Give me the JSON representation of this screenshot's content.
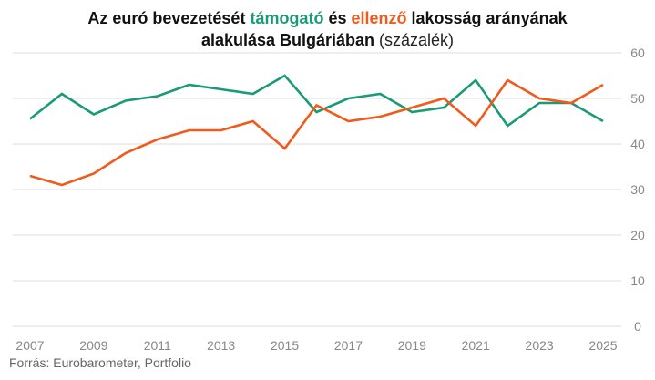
{
  "title": {
    "part1": "Az euró bevezetését ",
    "support_word": "támogató",
    "part2": " és ",
    "oppose_word": "ellenző",
    "part3": " lakosság arányának",
    "line2_bold": "alakulása Bulgáriában",
    "line2_unit": " (százalék)"
  },
  "source": "Forrás: Eurobarometer, Portfolio",
  "colors": {
    "support": "#1a9b77",
    "oppose": "#f05a1a",
    "grid": "#dddddd"
  },
  "chart_data": {
    "type": "line",
    "x": [
      2007,
      2008,
      2009,
      2010,
      2011,
      2012,
      2013,
      2014,
      2015,
      2016,
      2017,
      2018,
      2019,
      2020,
      2021,
      2022,
      2023,
      2024,
      2025
    ],
    "x_tick_labels": [
      "2007",
      "2009",
      "2011",
      "2013",
      "2015",
      "2017",
      "2019",
      "2021",
      "2023",
      "2025"
    ],
    "y_ticks": [
      0,
      10,
      20,
      30,
      40,
      50,
      60
    ],
    "ylim": [
      0,
      60
    ],
    "y_axis_side": "right",
    "grid": true,
    "series": [
      {
        "key": "support",
        "values": [
          45.5,
          51,
          46.5,
          49.5,
          50.5,
          53,
          52,
          51,
          55,
          47,
          50,
          51,
          47,
          48,
          54,
          44,
          49,
          49,
          45
        ]
      },
      {
        "key": "oppose",
        "values": [
          33,
          31,
          33.5,
          38,
          41,
          43,
          43,
          45,
          39,
          48.5,
          45,
          46,
          48,
          50,
          44,
          54,
          50,
          49,
          53
        ]
      }
    ]
  }
}
